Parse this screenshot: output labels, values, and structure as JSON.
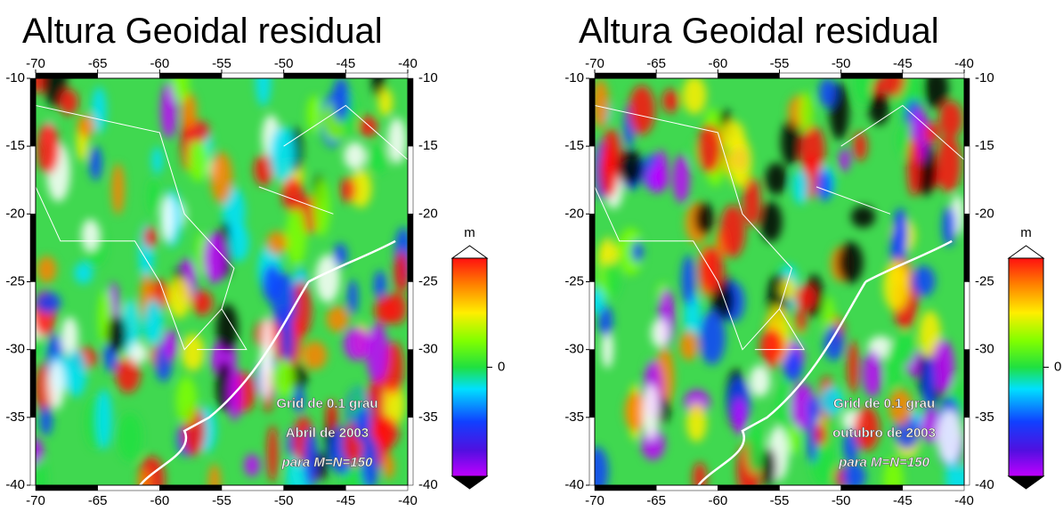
{
  "maps": [
    {
      "title": "Altura Geoidal residual",
      "xticks": [
        -70,
        -65,
        -60,
        -55,
        -50,
        -45,
        -40
      ],
      "yticks": [
        -10,
        -15,
        -20,
        -25,
        -30,
        -35,
        -40
      ],
      "annotations": [
        "Grid de 0.1 grau",
        "Abril de 2003",
        "para M=N=150"
      ],
      "colorbar": {
        "unit": "m",
        "ticks": [
          0
        ]
      }
    },
    {
      "title": "Altura Geoidal residual",
      "xticks": [
        -70,
        -65,
        -60,
        -55,
        -50,
        -45,
        -40
      ],
      "yticks": [
        -10,
        -15,
        -20,
        -25,
        -30,
        -35,
        -40
      ],
      "annotations": [
        "Grid de 0.1 grau",
        "outubro de 2003",
        "para M=N=150"
      ],
      "colorbar": {
        "unit": "m",
        "ticks": [
          0
        ]
      }
    }
  ]
}
